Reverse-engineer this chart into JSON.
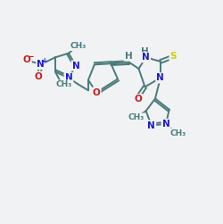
{
  "bg_color": "#f0f2f4",
  "bond_color": "#4a7a7a",
  "bond_width": 1.4,
  "atom_colors": {
    "N": "#1a1acc",
    "O": "#cc1a1a",
    "S": "#cccc00",
    "H": "#4a7a7a",
    "C": "#333333",
    "default": "#4a7a7a"
  }
}
